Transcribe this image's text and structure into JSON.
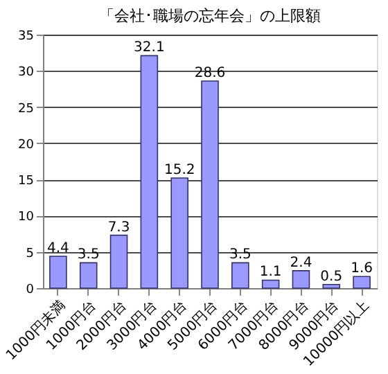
{
  "chart_data": {
    "type": "bar",
    "title": "「会社･職場の忘年会」の上限額",
    "categories": [
      "1000円未満",
      "1000円台",
      "2000円台",
      "3000円台",
      "4000円台",
      "5000円台",
      "6000円台",
      "7000円台",
      "8000円台",
      "9000円台",
      "10000円以上"
    ],
    "values": [
      4.4,
      3.5,
      7.3,
      32.1,
      15.2,
      28.6,
      3.5,
      1.1,
      2.4,
      0.5,
      1.6
    ],
    "color": "#9999ff",
    "ylim": [
      0,
      35
    ],
    "yticks": [
      0,
      5,
      10,
      15,
      20,
      25,
      30,
      35
    ],
    "grid": "y",
    "data_labels": true
  }
}
